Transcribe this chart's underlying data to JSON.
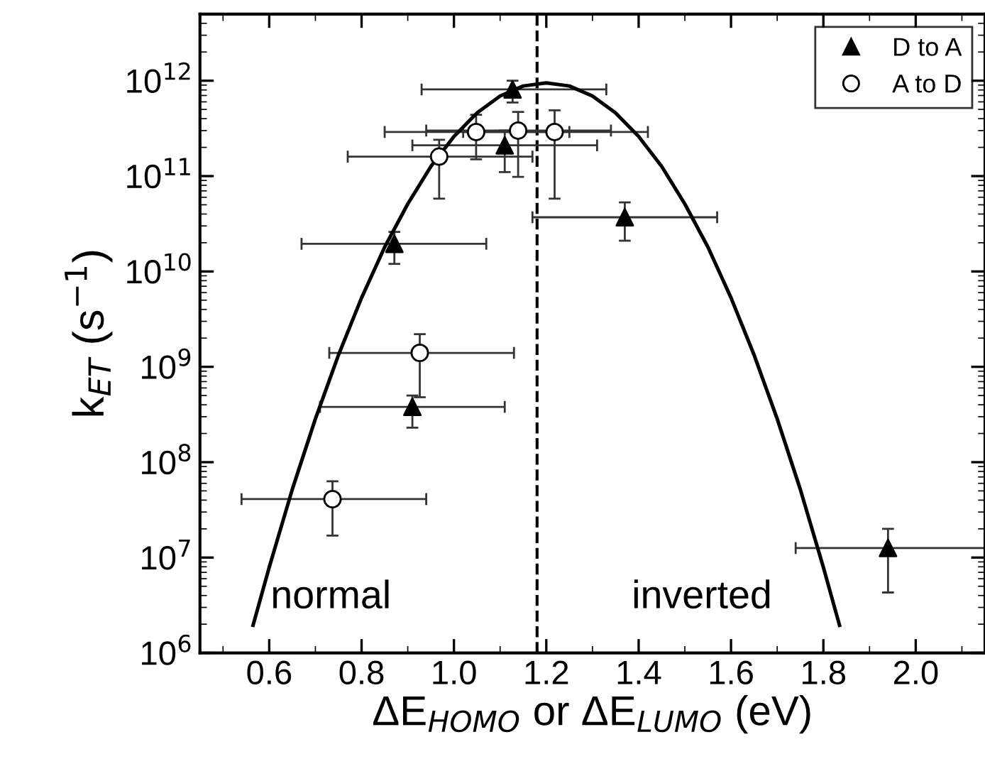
{
  "chart_data": {
    "type": "scatter",
    "xlabel": "ΔE$_{HOMO}$ or ΔE$_{LUMO}$ (eV)",
    "ylabel": "k$_{ET}$ (s$^{−1}$)",
    "log": "y",
    "xlim": [
      0.45,
      2.15
    ],
    "ylim": [
      1000000.0,
      5000000000000.0
    ],
    "xticks": [
      0.6,
      0.8,
      {
        "value": 1.0,
        "label": "1.0"
      },
      1.2,
      1.4,
      1.6,
      1.8,
      {
        "value": 2.0,
        "label": "2.0"
      }
    ],
    "yticks": [
      {
        "value": 1000000.0,
        "label": "10$^{6}$"
      },
      {
        "value": 10000000.0,
        "label": "10$^{7}$"
      },
      {
        "value": 100000000.0,
        "label": "10$^{8}$"
      },
      {
        "value": 1000000000.0,
        "label": "10$^{9}$"
      },
      {
        "value": 10000000000.0,
        "label": "10$^{10}$"
      },
      {
        "value": 100000000000.0,
        "label": "10$^{11}$"
      },
      {
        "value": 1000000000000.0,
        "label": "10$^{12}$"
      }
    ],
    "grid": false,
    "legend": "top right",
    "ref_lines": [
      {
        "axis": "x",
        "value": 1.18,
        "color": "#000000",
        "line_style": "dashed"
      }
    ],
    "annotations": [
      "normal",
      "inverted"
    ],
    "series": [
      {
        "name": "D to A",
        "marker": "triangle",
        "color": "#000000",
        "x": [
          1.127,
          1.11,
          0.871,
          1.37,
          0.91,
          1.94
        ],
        "values": [
          810000000000.0,
          210000000000.0,
          19500000000.0,
          37000000000.0,
          380000000.0,
          12600000.0
        ],
        "errors": [
          [
            590000000000.0,
            1000000000000.0
          ],
          [
            110000000000.0,
            300000000000.0
          ],
          [
            12000000000.0,
            26000000000.0
          ],
          [
            21000000000.0,
            53000000000.0
          ],
          [
            230000000.0,
            500000000.0
          ],
          [
            4300000.0,
            20000000.0
          ]
        ],
        "xerrors": [
          [
            0.93,
            1.33
          ],
          [
            0.91,
            1.31
          ],
          [
            0.67,
            1.07
          ],
          [
            1.17,
            1.57
          ],
          [
            0.71,
            1.11
          ],
          [
            1.74,
            2.15
          ]
        ]
      },
      {
        "name": "A to D",
        "marker": "circle",
        "color": "#000000",
        "x": [
          1.048,
          1.139,
          1.218,
          0.968,
          0.926,
          0.737
        ],
        "values": [
          290000000000.0,
          300000000000.0,
          290000000000.0,
          160000000000.0,
          1400000000.0,
          41000000.0
        ],
        "errors": [
          [
            150000000000.0,
            440000000000.0
          ],
          [
            98000000000.0,
            470000000000.0
          ],
          [
            58000000000.0,
            490000000000.0
          ],
          [
            58000000000.0,
            240000000000.0
          ],
          [
            480000000.0,
            2200000000.0
          ],
          [
            17000000.0,
            63000000.0
          ]
        ],
        "xerrors": [
          [
            0.85,
            1.25
          ],
          [
            0.94,
            1.34
          ],
          [
            1.02,
            1.42
          ],
          [
            0.77,
            1.17
          ],
          [
            0.73,
            1.13
          ],
          [
            0.54,
            0.94
          ]
        ]
      },
      {
        "type": "line",
        "marker": "none",
        "line_style": "solid",
        "color": "#000000",
        "x": [
          0.565,
          0.6,
          0.65,
          0.7,
          0.75,
          0.8,
          0.85,
          0.9,
          0.95,
          1.0,
          1.05,
          1.1,
          1.15,
          1.2,
          1.25,
          1.3,
          1.35,
          1.4,
          1.45,
          1.5,
          1.55,
          1.6,
          1.65,
          1.7,
          1.75,
          1.8,
          1.835
        ],
        "values": [
          1950000.0,
          7900000.0,
          52000000.0,
          285000000.0,
          1330000000.0,
          5300000000.0,
          18000000000.0,
          51000000000.0,
          126000000000.0,
          260000000000.0,
          460000000000.0,
          690000000000.0,
          880000000000.0,
          950000000000.0,
          880000000000.0,
          690000000000.0,
          460000000000.0,
          260000000000.0,
          126000000000.0,
          51000000000.0,
          18000000000.0,
          5300000000.0,
          1330000000.0,
          285000000.0,
          52000000.0,
          7900000.0,
          1950000.0
        ]
      }
    ]
  }
}
